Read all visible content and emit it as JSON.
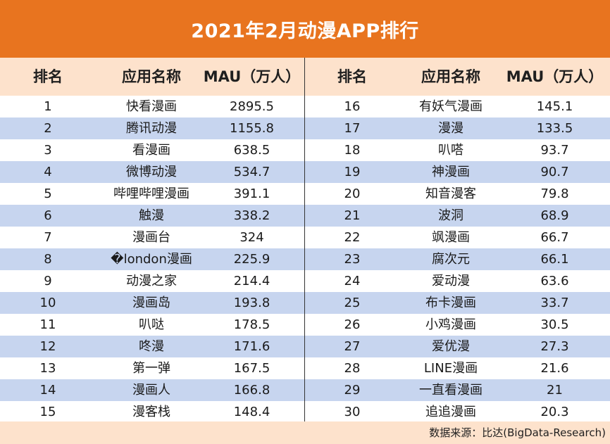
{
  "title": "2021年2月动漫APP排行",
  "headers": {
    "rank": "排名",
    "app": "应用名称",
    "mau": "MAU（万人）"
  },
  "source": "数据来源：比达(BigData-Research)",
  "colors": {
    "title_bg": "#e8741f",
    "header_bg": "#fde2cc",
    "alt_row_bg": "#c7d5ef"
  },
  "chart_data": {
    "type": "table",
    "title": "2021年2月动漫APP排行",
    "columns": [
      "排名",
      "应用名称",
      "MAU（万人）"
    ],
    "rows": [
      {
        "rank": "1",
        "app": "快看漫画",
        "mau": "2895.5"
      },
      {
        "rank": "2",
        "app": "腾讯动漫",
        "mau": "1155.8"
      },
      {
        "rank": "3",
        "app": "看漫画",
        "mau": "638.5"
      },
      {
        "rank": "4",
        "app": "微博动漫",
        "mau": "534.7"
      },
      {
        "rank": "5",
        "app": "哔哩哔哩漫画",
        "mau": "391.1"
      },
      {
        "rank": "6",
        "app": "触漫",
        "mau": "338.2"
      },
      {
        "rank": "7",
        "app": "漫画台",
        "mau": "324"
      },
      {
        "rank": "8",
        "app": "�london漫画",
        "mau": "225.9"
      },
      {
        "rank": "9",
        "app": "动漫之家",
        "mau": "214.4"
      },
      {
        "rank": "10",
        "app": "漫画岛",
        "mau": "193.8"
      },
      {
        "rank": "11",
        "app": "叭哒",
        "mau": "178.5"
      },
      {
        "rank": "12",
        "app": "咚漫",
        "mau": "171.6"
      },
      {
        "rank": "13",
        "app": "第一弹",
        "mau": "167.5"
      },
      {
        "rank": "14",
        "app": "漫画人",
        "mau": "166.8"
      },
      {
        "rank": "15",
        "app": "漫客栈",
        "mau": "148.4"
      },
      {
        "rank": "16",
        "app": "有妖气漫画",
        "mau": "145.1"
      },
      {
        "rank": "17",
        "app": "漫漫",
        "mau": "133.5"
      },
      {
        "rank": "18",
        "app": "叭嗒",
        "mau": "93.7"
      },
      {
        "rank": "19",
        "app": "神漫画",
        "mau": "90.7"
      },
      {
        "rank": "20",
        "app": "知音漫客",
        "mau": "79.8"
      },
      {
        "rank": "21",
        "app": "波洞",
        "mau": "68.9"
      },
      {
        "rank": "22",
        "app": "飒漫画",
        "mau": "66.7"
      },
      {
        "rank": "23",
        "app": "腐次元",
        "mau": "66.1"
      },
      {
        "rank": "24",
        "app": "爱动漫",
        "mau": "63.6"
      },
      {
        "rank": "25",
        "app": "布卡漫画",
        "mau": "33.7"
      },
      {
        "rank": "26",
        "app": "小鸡漫画",
        "mau": "30.5"
      },
      {
        "rank": "27",
        "app": "爱优漫",
        "mau": "27.3"
      },
      {
        "rank": "28",
        "app": "LINE漫画",
        "mau": "21.6"
      },
      {
        "rank": "29",
        "app": "一直看漫画",
        "mau": "21"
      },
      {
        "rank": "30",
        "app": "追追漫画",
        "mau": "20.3"
      }
    ]
  }
}
